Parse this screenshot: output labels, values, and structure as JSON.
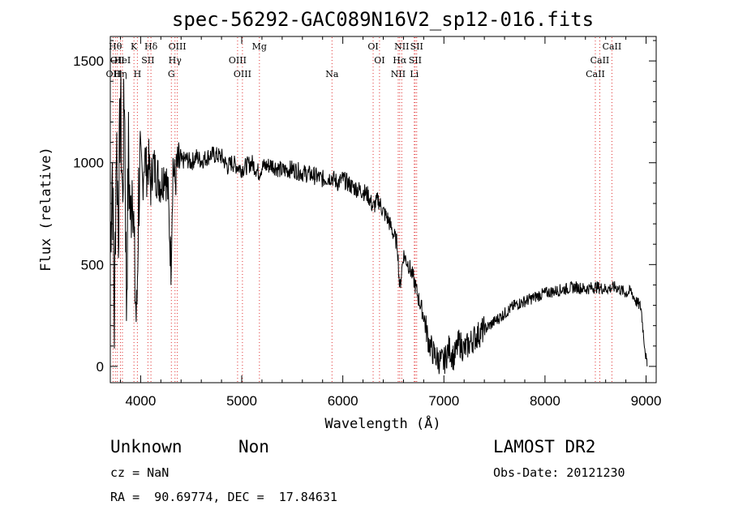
{
  "chart_data": {
    "type": "line",
    "title": "spec-56292-GAC089N16V2_sp12-016.fits",
    "xlabel": "Wavelength (Å)",
    "ylabel": "Flux (relative)",
    "xlim": [
      3700,
      9100
    ],
    "ylim": [
      -80,
      1620
    ],
    "xticks": [
      4000,
      5000,
      6000,
      7000,
      8000,
      9000
    ],
    "yticks": [
      0,
      500,
      1000,
      1500
    ],
    "grid": false,
    "line_color": "#000000",
    "marker_color": "#e03030",
    "series": [
      {
        "x": [
          3700,
          3720,
          3740,
          3760,
          3780,
          3800,
          3820,
          3840,
          3860,
          3880,
          3900,
          3920,
          3940,
          3960,
          3980,
          4000,
          4020,
          4040,
          4060,
          4080,
          4100,
          4120,
          4150,
          4180,
          4210,
          4240,
          4270,
          4300,
          4320,
          4340,
          4360,
          4400,
          4450,
          4500,
          4550,
          4600,
          4700,
          4800,
          4860,
          4900,
          5000,
          5100,
          5170,
          5200,
          5300,
          5400,
          5500,
          5600,
          5700,
          5800,
          5890,
          5950,
          6000,
          6100,
          6200,
          6250,
          6300,
          6350,
          6400,
          6450,
          6500,
          6540,
          6563,
          6600,
          6650,
          6700,
          6750,
          6800,
          6850,
          6900,
          6950,
          7000,
          7050,
          7100,
          7150,
          7200,
          7300,
          7400,
          7500,
          7600,
          7700,
          7800,
          7900,
          8000,
          8100,
          8200,
          8300,
          8400,
          8500,
          8600,
          8700,
          8800,
          8850,
          8900,
          8950,
          8970,
          9000,
          9010
        ],
        "y": [
          600,
          1000,
          200,
          1150,
          700,
          1320,
          800,
          1400,
          300,
          1050,
          700,
          1000,
          450,
          200,
          850,
          1000,
          900,
          1050,
          950,
          1000,
          880,
          1000,
          950,
          920,
          900,
          980,
          850,
          500,
          1000,
          900,
          980,
          1000,
          1020,
          1000,
          1030,
          1010,
          1040,
          1030,
          980,
          1000,
          970,
          1000,
          950,
          980,
          990,
          960,
          970,
          950,
          940,
          920,
          930,
          900,
          920,
          880,
          860,
          840,
          780,
          820,
          760,
          720,
          650,
          600,
          380,
          550,
          500,
          430,
          330,
          250,
          120,
          60,
          30,
          20,
          90,
          40,
          120,
          80,
          140,
          180,
          220,
          260,
          300,
          320,
          340,
          360,
          370,
          380,
          390,
          380,
          390,
          380,
          390,
          360,
          370,
          320,
          290,
          180,
          40,
          0
        ]
      }
    ],
    "line_groups": [
      {
        "x": 3727,
        "labels": [
          "OII"
        ],
        "row": 3
      },
      {
        "x": 3750,
        "labels": [
          "Hθ"
        ],
        "row": 1
      },
      {
        "x": 3770,
        "labels": [
          "OII"
        ],
        "row": 2
      },
      {
        "x": 3800,
        "labels": [
          "Hη"
        ],
        "row": 3
      },
      {
        "x": 3820,
        "labels": [
          "HeI"
        ],
        "row": 2
      },
      {
        "x": 3934,
        "labels": [
          "K"
        ],
        "row": 1
      },
      {
        "x": 3968,
        "labels": [
          "H"
        ],
        "row": 3
      },
      {
        "x": 4072,
        "labels": [
          "SII"
        ],
        "row": 2
      },
      {
        "x": 4102,
        "labels": [
          "Hδ"
        ],
        "row": 1
      },
      {
        "x": 4304,
        "labels": [
          "G"
        ],
        "row": 3
      },
      {
        "x": 4340,
        "labels": [
          "Hγ"
        ],
        "row": 2
      },
      {
        "x": 4363,
        "labels": [
          "OIII"
        ],
        "row": 1
      },
      {
        "x": 4959,
        "labels": [
          "OIII"
        ],
        "row": 2
      },
      {
        "x": 5007,
        "labels": [
          "OIII"
        ],
        "row": 3
      },
      {
        "x": 5175,
        "labels": [
          "Mg"
        ],
        "row": 1
      },
      {
        "x": 5893,
        "labels": [
          "Na"
        ],
        "row": 3
      },
      {
        "x": 6300,
        "labels": [
          "OI"
        ],
        "row": 1
      },
      {
        "x": 6363,
        "labels": [
          "OI"
        ],
        "row": 2
      },
      {
        "x": 6548,
        "labels": [
          "NII"
        ],
        "row": 3
      },
      {
        "x": 6563,
        "labels": [
          "Hα"
        ],
        "row": 2
      },
      {
        "x": 6583,
        "labels": [
          "NII"
        ],
        "row": 1
      },
      {
        "x": 6707,
        "labels": [
          "Li"
        ],
        "row": 3
      },
      {
        "x": 6716,
        "labels": [
          "SII"
        ],
        "row": 2
      },
      {
        "x": 6731,
        "labels": [
          "SII"
        ],
        "row": 1
      },
      {
        "x": 8498,
        "labels": [
          "CaII"
        ],
        "row": 3
      },
      {
        "x": 8542,
        "labels": [
          "CaII"
        ],
        "row": 2
      },
      {
        "x": 8662,
        "labels": [
          "CaII"
        ],
        "row": 1
      }
    ]
  },
  "footer": {
    "class_label": "Unknown",
    "subclass_label": "Non",
    "survey": "LAMOST DR2",
    "cz": "cz = NaN",
    "obs_date": "Obs-Date: 20121230",
    "coords": "RA =  90.69774, DEC =  17.84631"
  }
}
